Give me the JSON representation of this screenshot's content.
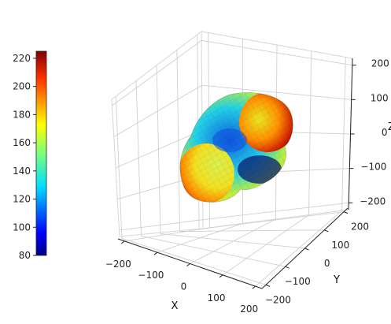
{
  "chart_data": {
    "type": "surface3d",
    "title": "",
    "colormap": "jet",
    "surface": "lobed radial surface (peanut/dumbbell shape), colored by radius",
    "xlabel": "X",
    "ylabel": "Y",
    "zlabel": "Z",
    "xlim": [
      -220,
      220
    ],
    "ylim": [
      -220,
      220
    ],
    "zlim": [
      -220,
      220
    ],
    "xticks": [
      -200,
      -100,
      0,
      100,
      200
    ],
    "yticks": [
      -200,
      -100,
      0,
      100,
      200
    ],
    "zticks": [
      -200,
      -100,
      0,
      100,
      200
    ],
    "xtick_labels": [
      "−200",
      "−100",
      "0",
      "100",
      "200"
    ],
    "ytick_labels": [
      "−200",
      "−100",
      "0",
      "100",
      "200"
    ],
    "ztick_labels": [
      "−200",
      "−100",
      "0",
      "100",
      "200"
    ],
    "colorbar": {
      "min": 80,
      "max": 225,
      "ticks": [
        80,
        100,
        120,
        140,
        160,
        180,
        200,
        220
      ],
      "labels": [
        "80",
        "100",
        "120",
        "140",
        "160",
        "180",
        "200",
        "220"
      ],
      "placement": "left"
    },
    "grid": true
  }
}
